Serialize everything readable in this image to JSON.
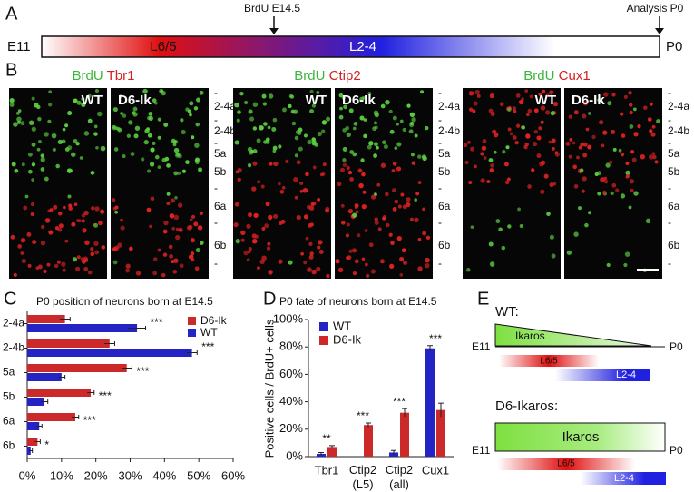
{
  "panel_a": {
    "label": "A",
    "start": "E11",
    "end": "P0",
    "early": "L6/5",
    "late": "L2-4",
    "injection": "BrdU E14.5",
    "analysis": "Analysis P0"
  },
  "panel_b": {
    "label": "B",
    "groups": [
      {
        "marker": "BrdU",
        "stain": "Tbr1"
      },
      {
        "marker": "BrdU",
        "stain": "Ctip2"
      },
      {
        "marker": "BrdU",
        "stain": "Cux1"
      }
    ],
    "genotypes": [
      "WT",
      "D6-Ik"
    ],
    "layers": [
      "2-4a",
      "2-4b",
      "5a",
      "5b",
      "6a",
      "6b"
    ],
    "boundary": "-"
  },
  "chart_data": [
    {
      "type": "bar",
      "orientation": "horizontal",
      "panel": "C",
      "title": "P0 position of neurons born at E14.5",
      "categories": [
        "2-4a",
        "2-4b",
        "5a",
        "5b",
        "6a",
        "6b"
      ],
      "series": [
        {
          "name": "D6-Ik",
          "color": "#cc2a2a",
          "values": [
            11,
            24,
            29,
            18.5,
            14,
            3
          ],
          "errors": [
            1.5,
            1.5,
            1.5,
            1,
            1,
            0.8
          ]
        },
        {
          "name": "WT",
          "color": "#2424c4",
          "values": [
            32,
            48,
            10,
            5,
            3.5,
            1
          ],
          "errors": [
            2.5,
            1.5,
            1,
            1,
            0.8,
            0.5
          ]
        }
      ],
      "significance": [
        "***",
        "***",
        "***",
        "***",
        "***",
        "*"
      ],
      "xlim": [
        0,
        60
      ],
      "xticks": [
        {
          "value": 0,
          "label": "0%"
        },
        {
          "value": 10,
          "label": "10%"
        },
        {
          "value": 20,
          "label": "20%"
        },
        {
          "value": 30,
          "label": "30%"
        },
        {
          "value": 40,
          "label": "40%"
        },
        {
          "value": 50,
          "label": "50%"
        },
        {
          "value": 60,
          "label": "60%"
        }
      ],
      "legend": "upper right"
    },
    {
      "type": "bar",
      "orientation": "vertical",
      "panel": "D",
      "title": "P0 fate of neurons born at E14.5",
      "ylabel": "Positive cells / BrdU+ cells",
      "categories": [
        "Tbr1",
        "Ctip2 (L5)",
        "Ctip2 (all)",
        "Cux1"
      ],
      "series": [
        {
          "name": "WT",
          "color": "#2424c4",
          "values": [
            2,
            0,
            3,
            79
          ],
          "errors": [
            1,
            0,
            1.5,
            2
          ]
        },
        {
          "name": "D6-Ik",
          "color": "#cc2a2a",
          "values": [
            7,
            23,
            32,
            34
          ],
          "errors": [
            1,
            1.5,
            3,
            5
          ]
        }
      ],
      "significance": [
        "**",
        "***",
        "***",
        "***"
      ],
      "ylim": [
        0,
        100
      ],
      "yticks": [
        {
          "value": 0,
          "label": "0%"
        },
        {
          "value": 20,
          "label": "20%"
        },
        {
          "value": 40,
          "label": "40%"
        },
        {
          "value": 60,
          "label": "60%"
        },
        {
          "value": 80,
          "label": "80%"
        },
        {
          "value": 100,
          "label": "100%"
        }
      ],
      "legend": "upper left"
    }
  ],
  "panel_e": {
    "label": "E",
    "wt": {
      "title": "WT:",
      "bar": "Ikaros"
    },
    "mutant": {
      "title": "D6-Ikaros:",
      "bar": "Ikaros"
    },
    "start": "E11",
    "end": "P0",
    "early": "L6/5",
    "late": "L2-4"
  }
}
